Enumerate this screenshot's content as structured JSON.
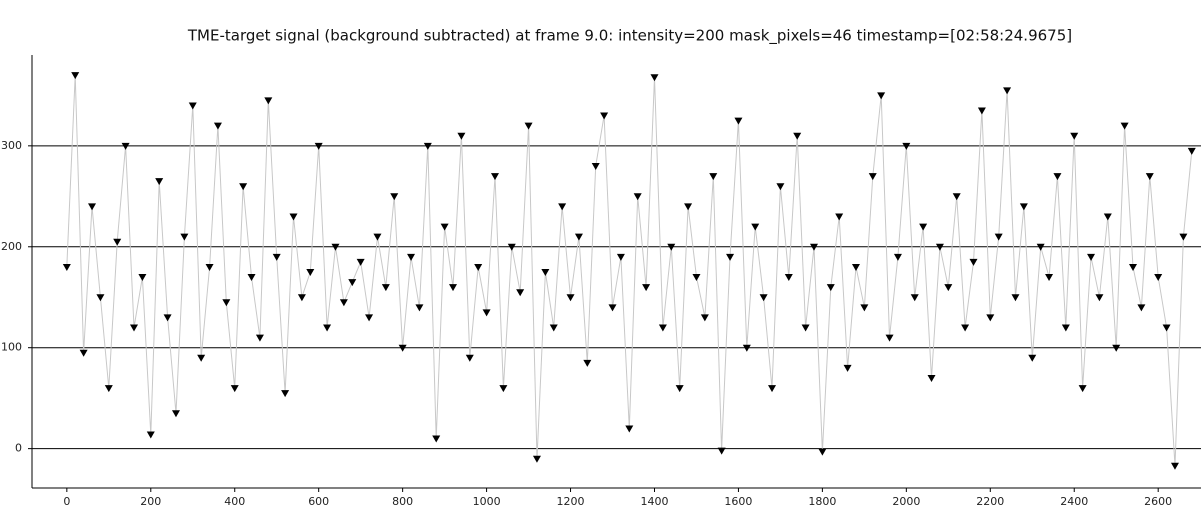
{
  "chart_data": {
    "type": "line",
    "title": "TME-target signal (background subtracted) at frame 9.0: intensity=200 mask_pixels=46 timestamp=[02:58:24.9675]",
    "x": [
      0,
      20,
      40,
      60,
      80,
      100,
      120,
      140,
      160,
      180,
      200,
      220,
      240,
      260,
      280,
      300,
      320,
      340,
      360,
      380,
      400,
      420,
      440,
      460,
      480,
      500,
      520,
      540,
      560,
      580,
      600,
      620,
      640,
      660,
      680,
      700,
      720,
      740,
      760,
      780,
      800,
      820,
      840,
      860,
      880,
      900,
      920,
      940,
      960,
      980,
      1000,
      1020,
      1040,
      1060,
      1080,
      1100,
      1120,
      1140,
      1160,
      1180,
      1200,
      1220,
      1240,
      1260,
      1280,
      1300,
      1320,
      1340,
      1360,
      1380,
      1400,
      1420,
      1440,
      1460,
      1480,
      1500,
      1520,
      1540,
      1560,
      1580,
      1600,
      1620,
      1640,
      1660,
      1680,
      1700,
      1720,
      1740,
      1760,
      1780,
      1800,
      1820,
      1840,
      1860,
      1880,
      1900,
      1920,
      1940,
      1960,
      1980,
      2000,
      2020,
      2040,
      2060,
      2080,
      2100,
      2120,
      2140,
      2160,
      2180,
      2200,
      2220,
      2240,
      2260,
      2280,
      2300,
      2320,
      2340,
      2360,
      2380,
      2400,
      2420,
      2440,
      2460,
      2480,
      2500,
      2520,
      2540,
      2560,
      2580,
      2600,
      2620,
      2640,
      2660,
      2680
    ],
    "series": [
      {
        "color": "#000000",
        "line_color": "#c8c8c8",
        "values": [
          180,
          370,
          95,
          240,
          150,
          60,
          205,
          300,
          120,
          170,
          14,
          265,
          130,
          35,
          210,
          340,
          90,
          180,
          320,
          145,
          60,
          260,
          170,
          110,
          345,
          190,
          55,
          230,
          150,
          175,
          300,
          120,
          200,
          145,
          165,
          185,
          130,
          210,
          160,
          250,
          100,
          190,
          140,
          300,
          10,
          220,
          160,
          310,
          90,
          180,
          135,
          270,
          60,
          200,
          155,
          320,
          -10,
          175,
          120,
          240,
          150,
          210,
          85,
          280,
          330,
          140,
          190,
          20,
          250,
          160,
          368,
          120,
          200,
          60,
          240,
          170,
          130,
          270,
          -2,
          190,
          325,
          100,
          220,
          150,
          60,
          260,
          170,
          310,
          120,
          200,
          -3,
          160,
          230,
          80,
          180,
          140,
          270,
          350,
          110,
          190,
          300,
          150,
          220,
          70,
          200,
          160,
          250,
          120,
          185,
          335,
          130,
          210,
          355,
          150,
          240,
          90,
          200,
          170,
          270,
          120,
          310,
          60,
          190,
          150,
          230,
          100,
          320,
          180,
          140,
          270,
          170,
          120,
          -17,
          210,
          295
        ]
      }
    ],
    "xlim": [
      -83,
      2702
    ],
    "ylim": [
      -39,
      390
    ],
    "xticks": [
      0,
      200,
      400,
      600,
      800,
      1000,
      1200,
      1400,
      1600,
      1800,
      2000,
      2200,
      2400,
      2600
    ],
    "yticks": [
      0,
      100,
      200,
      300
    ],
    "grid": true
  }
}
